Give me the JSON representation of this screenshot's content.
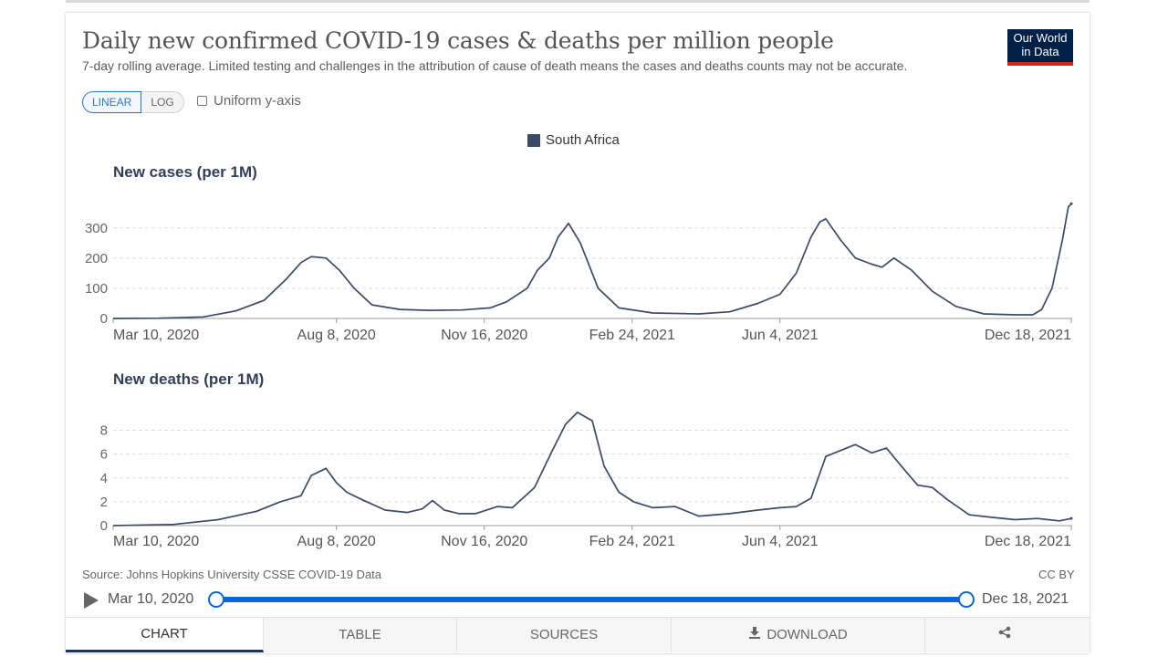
{
  "header": {
    "title": "Daily new confirmed COVID-19 cases & deaths per million people",
    "subtitle": "7-day rolling average. Limited testing and challenges in the attribution of cause of death means the cases and deaths counts may not be accurate."
  },
  "logo": {
    "line1": "Our World",
    "line2": "in Data"
  },
  "controls": {
    "linear_label": "LINEAR",
    "log_label": "LOG",
    "uniform_label": "Uniform y-axis"
  },
  "legend": {
    "label": "South Africa",
    "color": "#3b4b66"
  },
  "colors": {
    "line": "#3b4b66",
    "grid": "#dddddd",
    "accent": "#0a67d9",
    "logo_bg": "#002147",
    "logo_bar": "#ce261e"
  },
  "x_tick_labels": [
    "Mar 10, 2020",
    "Aug 8, 2020",
    "Nov 16, 2020",
    "Feb 24, 2021",
    "Jun 4, 2021",
    "Dec 18, 2021"
  ],
  "chart_data": [
    {
      "type": "line",
      "title": "New cases (per 1M)",
      "series": [
        {
          "name": "South Africa"
        }
      ],
      "x": [
        "2020-03-10",
        "2020-04-10",
        "2020-05-10",
        "2020-06-01",
        "2020-06-20",
        "2020-07-05",
        "2020-07-15",
        "2020-07-22",
        "2020-08-01",
        "2020-08-10",
        "2020-08-20",
        "2020-09-01",
        "2020-09-20",
        "2020-10-10",
        "2020-11-01",
        "2020-11-20",
        "2020-12-01",
        "2020-12-15",
        "2020-12-22",
        "2020-12-30",
        "2021-01-05",
        "2021-01-12",
        "2021-01-20",
        "2021-02-01",
        "2021-02-15",
        "2021-03-10",
        "2021-04-10",
        "2021-05-01",
        "2021-05-20",
        "2021-06-04",
        "2021-06-15",
        "2021-06-25",
        "2021-07-01",
        "2021-07-05",
        "2021-07-15",
        "2021-07-25",
        "2021-08-05",
        "2021-08-12",
        "2021-08-20",
        "2021-09-01",
        "2021-09-15",
        "2021-10-01",
        "2021-10-20",
        "2021-11-10",
        "2021-11-22",
        "2021-11-28",
        "2021-12-05",
        "2021-12-12",
        "2021-12-16",
        "2021-12-18"
      ],
      "values": [
        0,
        1,
        5,
        25,
        60,
        130,
        185,
        205,
        200,
        160,
        100,
        45,
        30,
        27,
        28,
        35,
        55,
        100,
        160,
        200,
        270,
        315,
        250,
        100,
        35,
        18,
        15,
        22,
        50,
        80,
        150,
        270,
        320,
        330,
        260,
        200,
        180,
        170,
        200,
        160,
        90,
        40,
        15,
        12,
        12,
        30,
        100,
        260,
        370,
        380
      ],
      "yticks": [
        0,
        100,
        200,
        300
      ],
      "ylim": [
        0,
        390
      ],
      "grid": true
    },
    {
      "type": "line",
      "title": "New deaths (per 1M)",
      "series": [
        {
          "name": "South Africa"
        }
      ],
      "x": [
        "2020-03-10",
        "2020-04-20",
        "2020-05-20",
        "2020-06-15",
        "2020-07-01",
        "2020-07-15",
        "2020-07-22",
        "2020-08-01",
        "2020-08-08",
        "2020-08-15",
        "2020-08-25",
        "2020-09-10",
        "2020-09-25",
        "2020-10-05",
        "2020-10-12",
        "2020-10-20",
        "2020-10-30",
        "2020-11-10",
        "2020-11-25",
        "2020-12-05",
        "2020-12-20",
        "2021-01-01",
        "2021-01-10",
        "2021-01-18",
        "2021-01-28",
        "2021-02-05",
        "2021-02-15",
        "2021-02-25",
        "2021-03-10",
        "2021-03-25",
        "2021-04-10",
        "2021-05-01",
        "2021-05-20",
        "2021-06-04",
        "2021-06-15",
        "2021-06-25",
        "2021-07-05",
        "2021-07-15",
        "2021-07-25",
        "2021-08-05",
        "2021-08-15",
        "2021-08-25",
        "2021-09-05",
        "2021-09-15",
        "2021-09-25",
        "2021-10-10",
        "2021-10-25",
        "2021-11-10",
        "2021-11-25",
        "2021-12-10",
        "2021-12-18"
      ],
      "values": [
        0,
        0.1,
        0.5,
        1.2,
        2.0,
        2.5,
        4.2,
        4.8,
        3.6,
        2.8,
        2.2,
        1.3,
        1.1,
        1.4,
        2.1,
        1.3,
        1.0,
        1.0,
        1.6,
        1.5,
        3.2,
        6.3,
        8.5,
        9.5,
        8.8,
        5.0,
        2.8,
        2.0,
        1.5,
        1.6,
        0.8,
        1.0,
        1.3,
        1.5,
        1.6,
        2.3,
        5.8,
        6.3,
        6.8,
        6.1,
        6.5,
        5.0,
        3.4,
        3.2,
        2.2,
        0.9,
        0.7,
        0.5,
        0.6,
        0.4,
        0.6
      ],
      "yticks": [
        0,
        2,
        4,
        6,
        8
      ],
      "ylim": [
        0,
        9.8
      ],
      "grid": true
    }
  ],
  "footer": {
    "source": "Source: Johns Hopkins University CSSE COVID-19 Data",
    "license": "CC BY"
  },
  "timeline": {
    "start_label": "Mar 10, 2020",
    "end_label": "Dec 18, 2021"
  },
  "tabs": [
    {
      "label": "CHART"
    },
    {
      "label": "TABLE"
    },
    {
      "label": "SOURCES"
    },
    {
      "label": "DOWNLOAD",
      "icon": "download-icon"
    },
    {
      "label": "",
      "icon": "share-icon"
    }
  ]
}
